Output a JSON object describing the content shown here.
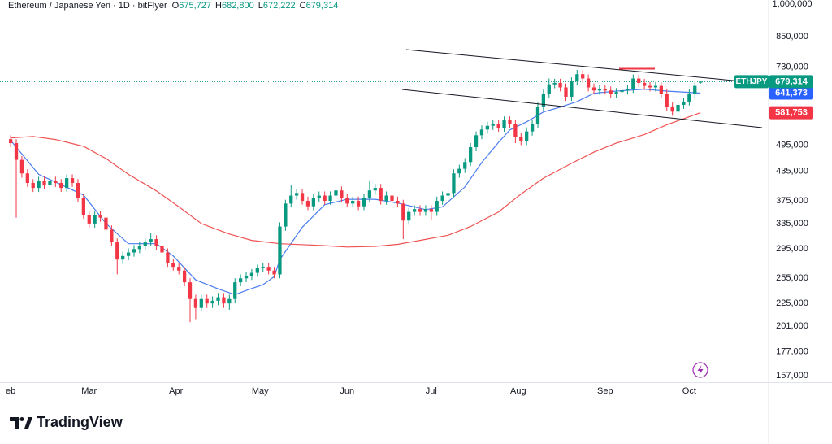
{
  "header": {
    "symbol": "Ethereum / Japanese Yen · 1D · bitFlyer",
    "ohlc": [
      {
        "label": "O",
        "value": "675,727"
      },
      {
        "label": "H",
        "value": "682,800"
      },
      {
        "label": "L",
        "value": "672,222"
      },
      {
        "label": "C",
        "value": "679,314"
      }
    ]
  },
  "chart_data": {
    "type": "candlestick",
    "up_color": "#089981",
    "down_color": "#f23645",
    "candles": [
      [
        510000,
        520000,
        490000,
        500000
      ],
      [
        500000,
        510000,
        345000,
        460000
      ],
      [
        460000,
        469000,
        421000,
        430000
      ],
      [
        430000,
        439000,
        402000,
        410000
      ],
      [
        410000,
        418000,
        392000,
        400000
      ],
      [
        400000,
        423000,
        392000,
        415000
      ],
      [
        415000,
        423000,
        397000,
        405000
      ],
      [
        405000,
        423000,
        397000,
        415000
      ],
      [
        415000,
        423000,
        402000,
        410000
      ],
      [
        410000,
        418000,
        392000,
        400000
      ],
      [
        400000,
        428000,
        392000,
        420000
      ],
      [
        420000,
        428000,
        402000,
        410000
      ],
      [
        410000,
        418000,
        372000,
        380000
      ],
      [
        380000,
        388000,
        343000,
        350000
      ],
      [
        350000,
        357000,
        328000,
        335000
      ],
      [
        335000,
        357000,
        328000,
        350000
      ],
      [
        350000,
        357000,
        338000,
        345000
      ],
      [
        345000,
        352000,
        319000,
        325000
      ],
      [
        325000,
        332000,
        299000,
        305000
      ],
      [
        305000,
        311000,
        260000,
        280000
      ],
      [
        280000,
        291000,
        274000,
        285000
      ],
      [
        285000,
        296000,
        279000,
        290000
      ],
      [
        290000,
        301000,
        284000,
        295000
      ],
      [
        295000,
        306000,
        289000,
        300000
      ],
      [
        300000,
        311000,
        294000,
        305000
      ],
      [
        305000,
        320000,
        299000,
        310000
      ],
      [
        310000,
        316000,
        294000,
        300000
      ],
      [
        300000,
        306000,
        284000,
        290000
      ],
      [
        290000,
        296000,
        270000,
        275000
      ],
      [
        275000,
        281000,
        265000,
        270000
      ],
      [
        270000,
        275000,
        260000,
        265000
      ],
      [
        265000,
        270000,
        245000,
        250000
      ],
      [
        250000,
        255000,
        205000,
        230000
      ],
      [
        230000,
        235000,
        208000,
        220000
      ],
      [
        220000,
        235000,
        216000,
        230000
      ],
      [
        230000,
        235000,
        220000,
        225000
      ],
      [
        225000,
        233000,
        220000,
        228000
      ],
      [
        228000,
        237000,
        223000,
        232000
      ],
      [
        232000,
        237000,
        220000,
        225000
      ],
      [
        225000,
        235000,
        218000,
        230000
      ],
      [
        230000,
        255000,
        225000,
        250000
      ],
      [
        250000,
        260000,
        245000,
        255000
      ],
      [
        255000,
        263000,
        250000,
        258000
      ],
      [
        258000,
        267000,
        253000,
        262000
      ],
      [
        262000,
        273000,
        257000,
        268000
      ],
      [
        268000,
        275000,
        263000,
        270000
      ],
      [
        270000,
        275000,
        260000,
        265000
      ],
      [
        265000,
        270000,
        255000,
        260000
      ],
      [
        260000,
        337000,
        255000,
        330000
      ],
      [
        330000,
        377000,
        323000,
        370000
      ],
      [
        370000,
        405000,
        363000,
        385000
      ],
      [
        385000,
        398000,
        377000,
        390000
      ],
      [
        390000,
        398000,
        368000,
        375000
      ],
      [
        375000,
        383000,
        358000,
        365000
      ],
      [
        365000,
        388000,
        358000,
        380000
      ],
      [
        380000,
        393000,
        372000,
        385000
      ],
      [
        385000,
        393000,
        368000,
        375000
      ],
      [
        375000,
        393000,
        368000,
        385000
      ],
      [
        385000,
        403000,
        377000,
        395000
      ],
      [
        395000,
        403000,
        372000,
        380000
      ],
      [
        380000,
        388000,
        363000,
        370000
      ],
      [
        370000,
        383000,
        363000,
        375000
      ],
      [
        375000,
        383000,
        358000,
        365000
      ],
      [
        365000,
        388000,
        358000,
        380000
      ],
      [
        380000,
        415000,
        372000,
        395000
      ],
      [
        395000,
        408000,
        387000,
        400000
      ],
      [
        400000,
        408000,
        368000,
        375000
      ],
      [
        375000,
        393000,
        368000,
        385000
      ],
      [
        385000,
        393000,
        368000,
        375000
      ],
      [
        375000,
        383000,
        363000,
        370000
      ],
      [
        370000,
        377000,
        310000,
        340000
      ],
      [
        340000,
        362000,
        333000,
        355000
      ],
      [
        355000,
        367000,
        348000,
        360000
      ],
      [
        360000,
        367000,
        348000,
        355000
      ],
      [
        355000,
        367000,
        348000,
        360000
      ],
      [
        360000,
        367000,
        340000,
        355000
      ],
      [
        355000,
        383000,
        348000,
        375000
      ],
      [
        375000,
        393000,
        368000,
        385000
      ],
      [
        385000,
        398000,
        377000,
        390000
      ],
      [
        390000,
        439000,
        382000,
        430000
      ],
      [
        430000,
        449000,
        421000,
        440000
      ],
      [
        440000,
        464000,
        431000,
        455000
      ],
      [
        455000,
        500000,
        446000,
        490000
      ],
      [
        490000,
        530000,
        480000,
        520000
      ],
      [
        520000,
        546000,
        510000,
        535000
      ],
      [
        535000,
        556000,
        524000,
        545000
      ],
      [
        545000,
        561000,
        534000,
        550000
      ],
      [
        550000,
        561000,
        529000,
        540000
      ],
      [
        540000,
        571000,
        529000,
        560000
      ],
      [
        560000,
        571000,
        539000,
        550000
      ],
      [
        550000,
        561000,
        500000,
        515000
      ],
      [
        515000,
        525000,
        495000,
        505000
      ],
      [
        505000,
        541000,
        495000,
        530000
      ],
      [
        530000,
        561000,
        519000,
        550000
      ],
      [
        550000,
        612000,
        539000,
        600000
      ],
      [
        600000,
        653000,
        588000,
        640000
      ],
      [
        640000,
        690000,
        627000,
        670000
      ],
      [
        670000,
        689000,
        657000,
        675000
      ],
      [
        675000,
        689000,
        647000,
        660000
      ],
      [
        660000,
        673000,
        617000,
        630000
      ],
      [
        630000,
        694000,
        617000,
        680000
      ],
      [
        680000,
        720000,
        666000,
        705000
      ],
      [
        705000,
        719000,
        676000,
        690000
      ],
      [
        690000,
        704000,
        647000,
        660000
      ],
      [
        660000,
        673000,
        637000,
        650000
      ],
      [
        650000,
        668000,
        637000,
        655000
      ],
      [
        655000,
        668000,
        637000,
        650000
      ],
      [
        650000,
        663000,
        627000,
        640000
      ],
      [
        640000,
        658000,
        627000,
        645000
      ],
      [
        645000,
        663000,
        632000,
        650000
      ],
      [
        650000,
        668000,
        637000,
        655000
      ],
      [
        655000,
        704000,
        642000,
        690000
      ],
      [
        690000,
        704000,
        662000,
        675000
      ],
      [
        675000,
        689000,
        652000,
        665000
      ],
      [
        665000,
        678000,
        647000,
        660000
      ],
      [
        660000,
        678000,
        647000,
        665000
      ],
      [
        665000,
        678000,
        627000,
        640000
      ],
      [
        640000,
        653000,
        588000,
        600000
      ],
      [
        600000,
        612000,
        573000,
        585000
      ],
      [
        585000,
        617000,
        573000,
        605000
      ],
      [
        605000,
        627000,
        593000,
        615000
      ],
      [
        615000,
        653000,
        603000,
        640000
      ],
      [
        640000,
        678000,
        627000,
        665000
      ],
      [
        675727,
        682800,
        672222,
        679314
      ]
    ],
    "series": [
      {
        "color": "#4a7cf0",
        "x": [
          0,
          5,
          13,
          17,
          21,
          26,
          29,
          33,
          37,
          40,
          42,
          45,
          47,
          48,
          52,
          56,
          60,
          65,
          69,
          74,
          77,
          81,
          84,
          87,
          89,
          92,
          95,
          98,
          101,
          104,
          108,
          113,
          117,
          123
        ],
        "values": [
          507000,
          428000,
          386000,
          335000,
          303000,
          303000,
          285000,
          253000,
          242000,
          235000,
          240000,
          247000,
          257000,
          280000,
          329000,
          368000,
          378000,
          378000,
          371000,
          359000,
          364000,
          402000,
          454000,
          502000,
          534000,
          556000,
          584000,
          598000,
          615000,
          641000,
          648000,
          654000,
          648000,
          641373
        ]
      },
      {
        "color": "#f05252",
        "x": [
          0,
          4,
          8,
          13,
          17,
          21,
          26,
          30,
          34,
          39,
          43,
          48,
          56,
          60,
          65,
          69,
          73,
          78,
          82,
          87,
          91,
          95,
          100,
          104,
          108,
          113,
          117,
          123
        ],
        "values": [
          513000,
          517000,
          509000,
          492000,
          463000,
          428000,
          394000,
          364000,
          335000,
          318000,
          308000,
          303000,
          300000,
          298000,
          299000,
          302000,
          308000,
          316000,
          330000,
          355000,
          388000,
          420000,
          452000,
          478000,
          500000,
          522000,
          548000,
          581753
        ]
      }
    ],
    "price_tags": [
      {
        "symbol": "ETHJPY",
        "value": 679314,
        "value_label": "679,314",
        "color": "#089981"
      },
      {
        "value": 641373,
        "value_label": "641,373",
        "color": "#2962ff"
      },
      {
        "value": 581753,
        "value_label": "581,753",
        "color": "#f23645"
      }
    ],
    "xlim": [
      -1.9,
      135
    ],
    "xticks": [
      {
        "value": 0,
        "label": "eb"
      },
      {
        "value": 14,
        "label": "Mar"
      },
      {
        "value": 29.5,
        "label": "Apr"
      },
      {
        "value": 44.5,
        "label": "May"
      },
      {
        "value": 60,
        "label": "Jun"
      },
      {
        "value": 75,
        "label": "Jul"
      },
      {
        "value": 90.5,
        "label": "Aug"
      },
      {
        "value": 106,
        "label": "Sep"
      },
      {
        "value": 121,
        "label": "Oct"
      }
    ],
    "ylim": [
      152000,
      1020000
    ],
    "log_y": true,
    "grid": false,
    "yticks": [
      {
        "value": 1000000,
        "label": "1,000,000"
      },
      {
        "value": 850000,
        "label": "850,000"
      },
      {
        "value": 730000,
        "label": "730,000"
      },
      {
        "value": 495000,
        "label": "495,000"
      },
      {
        "value": 435000,
        "label": "435,000"
      },
      {
        "value": 375000,
        "label": "375,000"
      },
      {
        "value": 335000,
        "label": "335,000"
      },
      {
        "value": 295000,
        "label": "295,000"
      },
      {
        "value": 255000,
        "label": "255,000"
      },
      {
        "value": 225000,
        "label": "225,000"
      },
      {
        "value": 201000,
        "label": "201,000"
      },
      {
        "value": 177000,
        "label": "177,000"
      },
      {
        "value": 157000,
        "label": "157,000"
      }
    ]
  },
  "brand": "TradingView"
}
